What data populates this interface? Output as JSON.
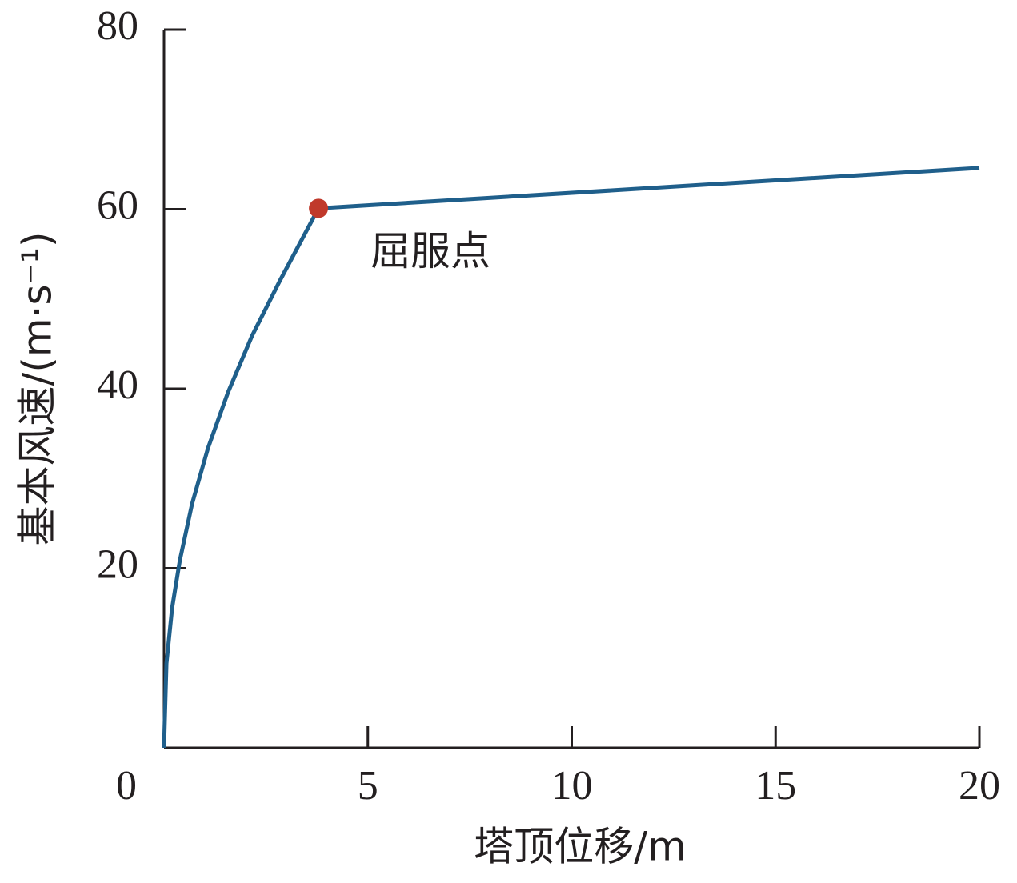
{
  "chart_data": {
    "type": "line",
    "x_label": "塔顶位移/m",
    "y_label": "基本风速/(m·s⁻¹)",
    "xlim": [
      0,
      20
    ],
    "xticks": [
      0,
      5,
      10,
      15,
      20
    ],
    "ylim": [
      0,
      80
    ],
    "yticks": [
      20,
      40,
      60,
      80
    ],
    "series": [
      {
        "color": "#1f5f8b",
        "x": [
          0,
          0.06,
          0.2,
          0.39,
          0.69,
          1.08,
          1.57,
          2.16,
          2.85,
          3.79,
          20
        ],
        "values": [
          0,
          9.4,
          15.6,
          20.9,
          27.2,
          33.4,
          39.6,
          45.9,
          52.1,
          60.1,
          64.6
        ]
      }
    ],
    "yield_point": {
      "x": 3.79,
      "y": 60.1,
      "color": "#c0392b",
      "label": "屈服点"
    }
  }
}
